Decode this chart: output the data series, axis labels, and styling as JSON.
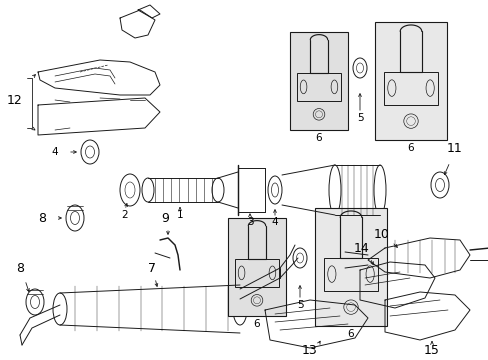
{
  "bg_color": "#ffffff",
  "line_color": "#1a1a1a",
  "label_color": "#000000",
  "lw": 0.7,
  "figsize": [
    4.89,
    3.6
  ],
  "dpi": 100
}
